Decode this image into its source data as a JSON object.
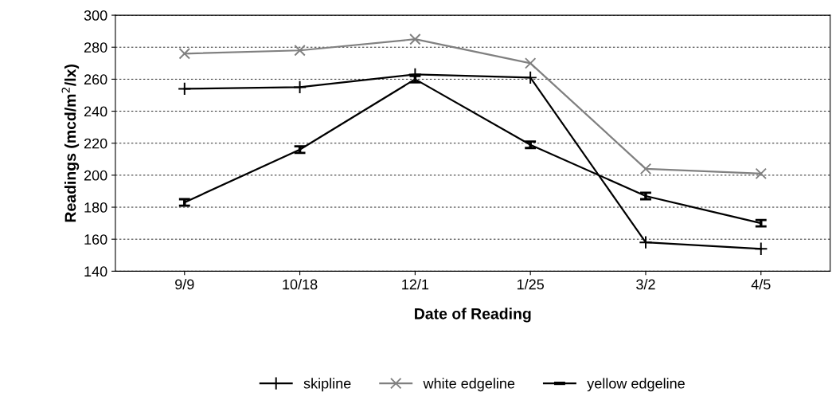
{
  "chart_data": {
    "type": "line",
    "xlabel": "Date of Reading",
    "ylabel": "Readings (mcd/m$^{2}$/lx)",
    "categories": [
      "9/9",
      "10/18",
      "12/1",
      "1/25",
      "3/2",
      "4/5"
    ],
    "series": [
      {
        "name": "skipline",
        "color": "#000000",
        "marker": "plus",
        "values": [
          254,
          255,
          263,
          261,
          158,
          154
        ]
      },
      {
        "name": "white edgeline",
        "color": "#808080",
        "marker": "x",
        "values": [
          276,
          278,
          285,
          270,
          204,
          201
        ]
      },
      {
        "name": "yellow edgeline",
        "color": "#000000",
        "marker": "none",
        "values": [
          183,
          216,
          260,
          219,
          187,
          170
        ],
        "errors": [
          2,
          2,
          2,
          2,
          2,
          2
        ]
      }
    ],
    "ylim": [
      140,
      300
    ],
    "yticks": [
      140,
      160,
      180,
      200,
      220,
      240,
      260,
      280,
      300
    ],
    "grid": "y",
    "legend": "bottom"
  }
}
